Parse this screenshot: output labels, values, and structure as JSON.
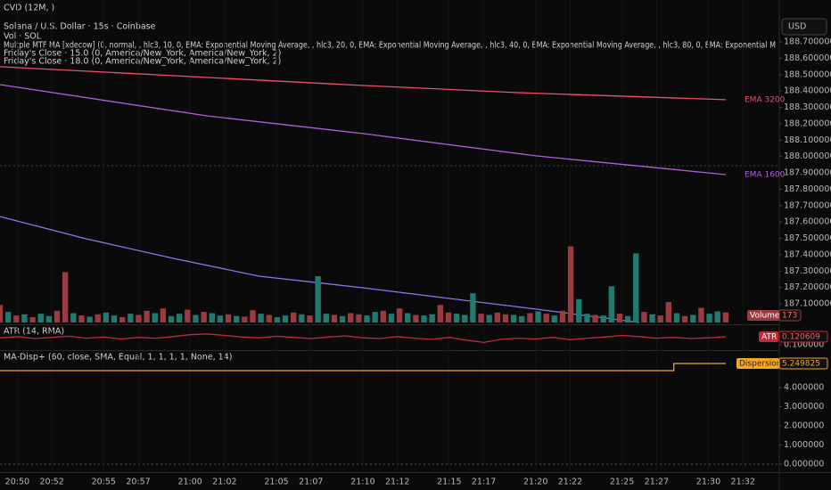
{
  "header": {
    "indicator": "CVD (12M, )",
    "currency": "USD"
  },
  "legend": [
    "Solana / U.S. Dollar · 15s · Coinbase",
    "Vol · SOL",
    "Multple MTF MA [xdecow] (0, normal, , hlc3, 10, 0, EMA: Exponential Moving Average, , hlc3, 20, 0, EMA: Exponential Moving Average, , hlc3, 40, 0, EMA: Exponential Moving Average, , hlc3, 80, 0, EMA: Exponential M",
    "Friday's Close · 15.0 (0, America/New_York, America/New_York, 2)",
    "Friday's Close · 18.0 (0, America/New_York, America/New_York, 2)"
  ],
  "chart_data": [
    {
      "type": "line",
      "xlim": [
        "20:49",
        "21:34"
      ],
      "xticks": [
        "20:50",
        "20:52",
        "20:55",
        "20:57",
        "21:00",
        "21:02",
        "21:05",
        "21:07",
        "21:10",
        "21:12",
        "21:15",
        "21:17",
        "21:20",
        "21:22",
        "21:25",
        "21:27",
        "21:30",
        "21:32"
      ],
      "ylim": [
        186.975,
        188.847
      ],
      "yticks": [
        {
          "value": 188.7,
          "label": "188.700000"
        },
        {
          "value": 188.6,
          "label": "188.600000"
        },
        {
          "value": 188.5,
          "label": "188.500000"
        },
        {
          "value": 188.4,
          "label": "188.400000"
        },
        {
          "value": 188.3,
          "label": "188.300000"
        },
        {
          "value": 188.2,
          "label": "188.200000"
        },
        {
          "value": 188.1,
          "label": "188.100000"
        },
        {
          "value": 188.0,
          "label": "188.000000"
        },
        {
          "value": 187.9,
          "label": "187.900000"
        },
        {
          "value": 187.8,
          "label": "187.800000"
        },
        {
          "value": 187.7,
          "label": "187.700000"
        },
        {
          "value": 187.6,
          "label": "187.600000"
        },
        {
          "value": 187.5,
          "label": "187.500000"
        },
        {
          "value": 187.4,
          "label": "187.400000"
        },
        {
          "value": 187.3,
          "label": "187.300000"
        },
        {
          "value": 187.2,
          "label": "187.200000"
        },
        {
          "value": 187.1,
          "label": "187.100000"
        }
      ],
      "series": [
        {
          "name": "EMA 3200",
          "color": "#f0506e",
          "x": [
            "20:49",
            "20:59",
            "21:09",
            "21:19",
            "21:31"
          ],
          "values": [
            188.548,
            188.494,
            188.439,
            188.39,
            188.347
          ]
        },
        {
          "name": "EMA 1600",
          "color": "#b35ed8",
          "x": [
            "20:49",
            "21:01",
            "21:10",
            "21:20",
            "21:31"
          ],
          "values": [
            188.439,
            188.248,
            188.14,
            188.004,
            187.889
          ]
        },
        {
          "color": "#7e7ee8",
          "x": [
            "20:49",
            "20:54",
            "20:59",
            "21:04",
            "21:10",
            "21:15",
            "21:20",
            "21:26"
          ],
          "values": [
            187.633,
            187.497,
            187.378,
            187.269,
            187.198,
            187.133,
            187.068,
            186.986
          ]
        }
      ]
    },
    {
      "type": "bar",
      "name": "Volume",
      "ylim": [
        0,
        5200
      ],
      "up_color": "#1f7a70",
      "down_color": "#9b3b3f",
      "values": [
        300,
        180,
        120,
        140,
        90,
        150,
        110,
        200,
        860,
        160,
        120,
        100,
        140,
        170,
        120,
        90,
        150,
        130,
        200,
        160,
        240,
        110,
        150,
        220,
        130,
        180,
        160,
        120,
        140,
        110,
        100,
        210,
        150,
        130,
        90,
        120,
        170,
        140,
        120,
        790,
        150,
        130,
        110,
        160,
        140,
        120,
        180,
        200,
        150,
        240,
        160,
        130,
        120,
        140,
        300,
        170,
        150,
        130,
        500,
        150,
        130,
        170,
        140,
        130,
        110,
        160,
        190,
        150,
        120,
        200,
        1300,
        400,
        150,
        130,
        120,
        620,
        150,
        110,
        1180,
        180,
        140,
        120,
        350,
        160,
        110,
        130,
        250,
        150,
        190,
        173
      ],
      "up": [
        0,
        1,
        0,
        1,
        0,
        1,
        1,
        0,
        0,
        1,
        0,
        1,
        0,
        1,
        1,
        0,
        1,
        0,
        0,
        1,
        0,
        1,
        1,
        0,
        1,
        0,
        1,
        1,
        0,
        1,
        0,
        0,
        1,
        0,
        1,
        1,
        0,
        1,
        0,
        1,
        1,
        0,
        1,
        0,
        0,
        1,
        1,
        0,
        1,
        0,
        1,
        0,
        1,
        1,
        0,
        0,
        1,
        1,
        1,
        0,
        1,
        0,
        0,
        1,
        1,
        0,
        1,
        0,
        1,
        0,
        0,
        1,
        1,
        0,
        1,
        1,
        0,
        1,
        1,
        0,
        1,
        0,
        0,
        1,
        0,
        1,
        0,
        1,
        1,
        0
      ]
    },
    {
      "type": "line",
      "title": "ATR (14, RMA)",
      "name": "ATR",
      "color": "#c02a36",
      "ylim": [
        0.0886,
        0.1504
      ],
      "yticks": [
        {
          "value": 0.1,
          "label": "0.100000"
        }
      ],
      "x": [
        "20:49",
        "20:50",
        "20:51",
        "20:52",
        "20:53",
        "20:54",
        "20:55",
        "20:56",
        "20:57",
        "20:58",
        "20:59",
        "21:00",
        "21:01",
        "21:02",
        "21:03",
        "21:04",
        "21:05",
        "21:06",
        "21:07",
        "21:08",
        "21:09",
        "21:10",
        "21:11",
        "21:12",
        "21:13",
        "21:14",
        "21:15",
        "21:16",
        "21:17",
        "21:18",
        "21:19",
        "21:20",
        "21:21",
        "21:22",
        "21:23",
        "21:24",
        "21:25",
        "21:26",
        "21:27",
        "21:28",
        "21:29",
        "21:30",
        "21:31"
      ],
      "values": [
        0.118,
        0.121,
        0.116,
        0.119,
        0.122,
        0.117,
        0.12,
        0.115,
        0.119,
        0.117,
        0.121,
        0.126,
        0.128,
        0.124,
        0.12,
        0.118,
        0.122,
        0.119,
        0.116,
        0.12,
        0.123,
        0.118,
        0.116,
        0.121,
        0.117,
        0.114,
        0.119,
        0.112,
        0.106,
        0.114,
        0.117,
        0.115,
        0.119,
        0.113,
        0.117,
        0.12,
        0.124,
        0.121,
        0.117,
        0.119,
        0.116,
        0.118,
        0.120609
      ]
    },
    {
      "type": "line",
      "title": "MA-Disp+ (60, close, SMA, Equal, 1, 1, 1, 1, None, 14)",
      "name": "Dispersion",
      "color": "#f5a623",
      "ylim": [
        -0.32,
        5.9
      ],
      "yticks": [
        {
          "value": 4,
          "label": "4.000000"
        },
        {
          "value": 3,
          "label": "3.000000"
        },
        {
          "value": 2,
          "label": "2.000000"
        },
        {
          "value": 1,
          "label": "1.000000"
        },
        {
          "value": 0,
          "label": "0.000000"
        }
      ],
      "x": [
        "20:49",
        "21:28",
        "21:28",
        "21:31"
      ],
      "values": [
        4.88,
        4.88,
        5.249825,
        5.249825
      ]
    }
  ]
}
